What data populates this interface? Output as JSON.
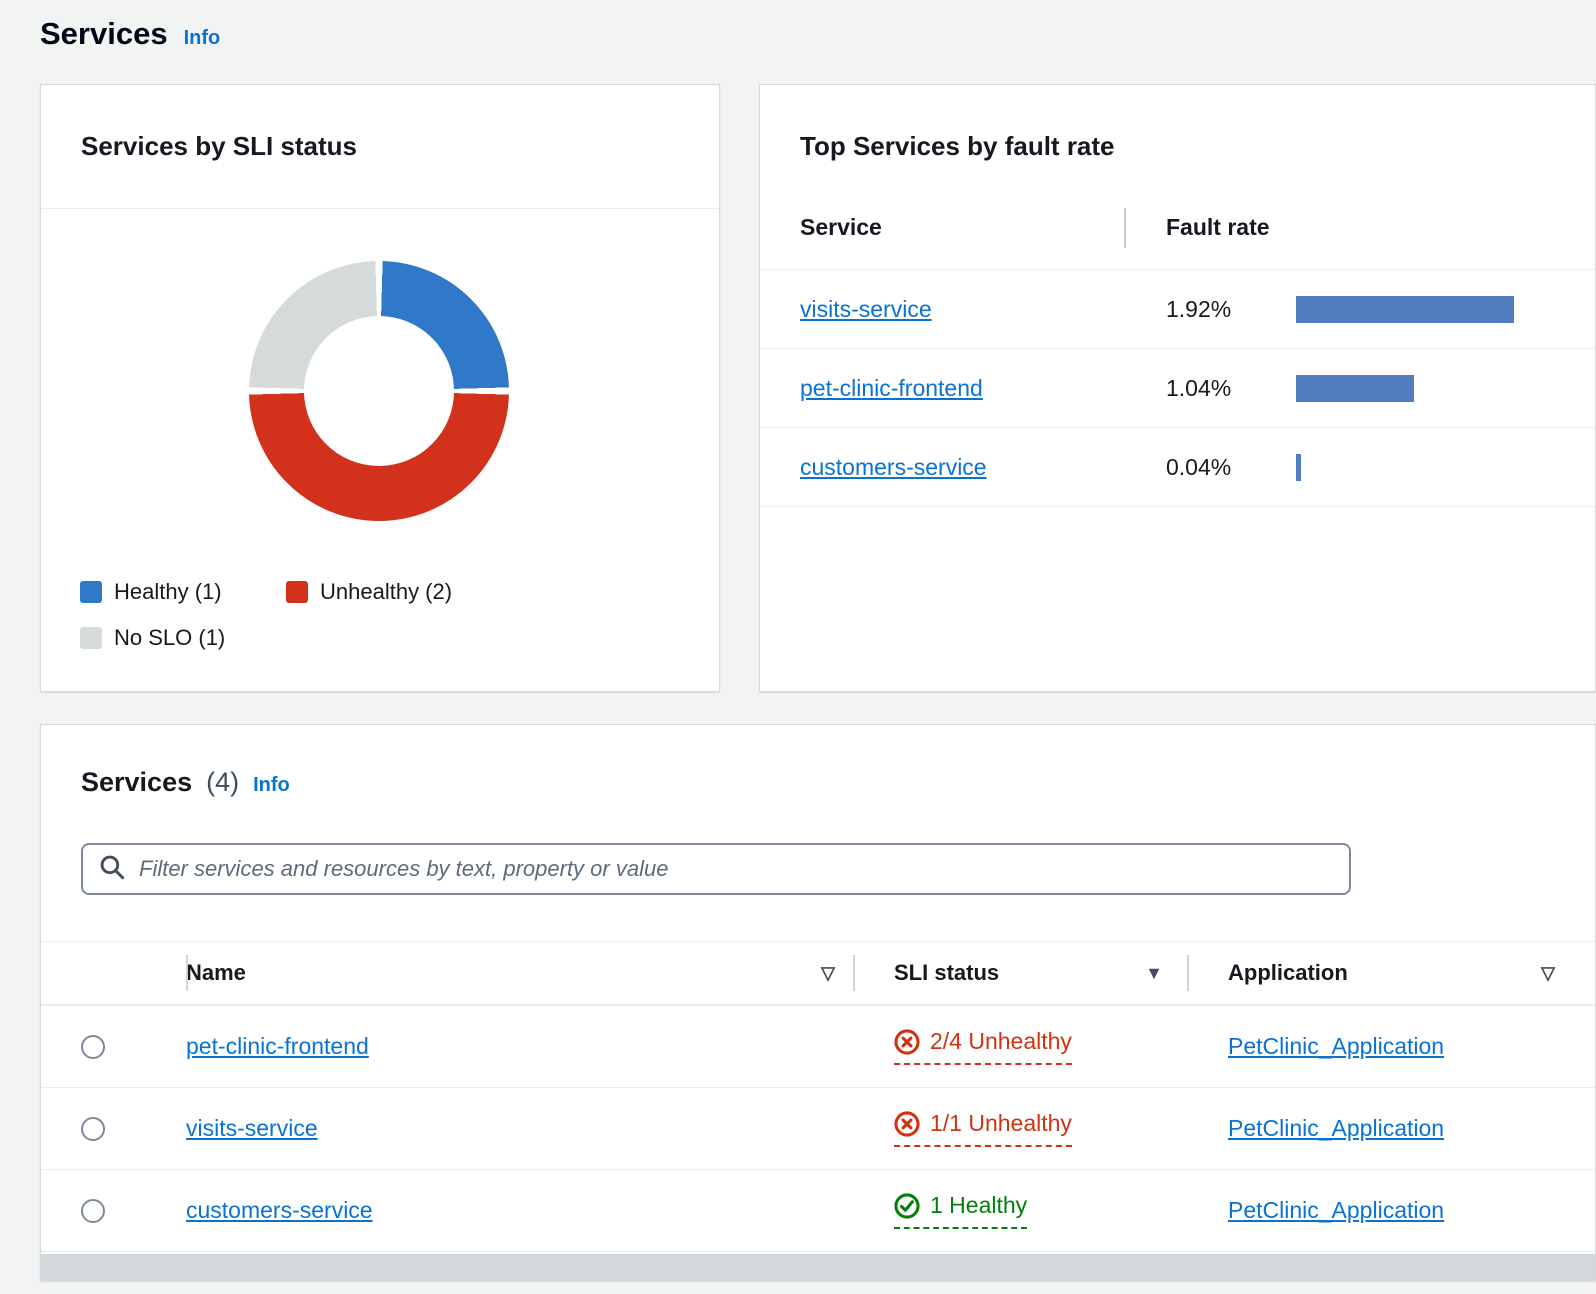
{
  "page": {
    "title": "Services",
    "info_label": "Info"
  },
  "colors": {
    "link_blue": "#0972d3",
    "error_red": "#d13212",
    "success_green": "#037f0c",
    "bar_blue": "#527cc0",
    "donut_healthy": "#3079c8",
    "donut_unhealthy": "#d2311c",
    "donut_no_slo": "#d5dbdb"
  },
  "icons": {
    "sort_active_desc": "▼",
    "sort_inactive": "▽"
  },
  "sli_card": {
    "title": "Services by SLI status",
    "legend": [
      {
        "label": "Healthy (1)",
        "color": "#3079c8"
      },
      {
        "label": "Unhealthy (2)",
        "color": "#d2311c"
      },
      {
        "label": "No SLO (1)",
        "color": "#d5dbdb"
      }
    ]
  },
  "fault_card": {
    "title": "Top Services by fault rate",
    "columns": [
      "Service",
      "Fault rate"
    ],
    "rows": [
      {
        "service": "visits-service",
        "rate": "1.92%"
      },
      {
        "service": "pet-clinic-frontend",
        "rate": "1.04%"
      },
      {
        "service": "customers-service",
        "rate": "0.04%"
      }
    ]
  },
  "services_table": {
    "title": "Services",
    "count": "(4)",
    "info_label": "Info",
    "filter_placeholder": "Filter services and resources by text, property or value",
    "columns": [
      "Name",
      "SLI status",
      "Application"
    ],
    "rows": [
      {
        "name": "pet-clinic-frontend",
        "sli_status": "2/4 Unhealthy",
        "status_type": "error",
        "application": "PetClinic_Application"
      },
      {
        "name": "visits-service",
        "sli_status": "1/1 Unhealthy",
        "status_type": "error",
        "application": "PetClinic_Application"
      },
      {
        "name": "customers-service",
        "sli_status": "1 Healthy",
        "status_type": "success",
        "application": "PetClinic_Application"
      }
    ]
  },
  "chart_data": [
    {
      "type": "pie",
      "subtype": "donut",
      "title": "Services by SLI status",
      "categories": [
        "Healthy",
        "Unhealthy",
        "No SLO"
      ],
      "values": [
        1,
        2,
        1
      ],
      "colors": [
        "#3079c8",
        "#d2311c",
        "#d5dbdb"
      ],
      "legend_position": "bottom"
    },
    {
      "type": "bar",
      "orientation": "horizontal",
      "title": "Top Services by fault rate",
      "categories": [
        "visits-service",
        "pet-clinic-frontend",
        "customers-service"
      ],
      "values": [
        1.92,
        1.04,
        0.04
      ],
      "unit": "%",
      "xlabel": "Fault rate",
      "ylabel": "Service"
    }
  ]
}
